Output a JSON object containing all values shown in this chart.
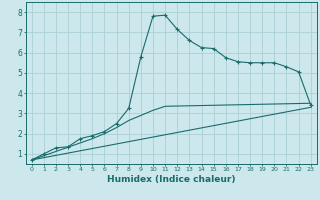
{
  "xlabel": "Humidex (Indice chaleur)",
  "background_color": "#cce8ec",
  "grid_color": "#aacfd5",
  "line_color": "#1a6b6b",
  "xlim": [
    -0.5,
    23.5
  ],
  "ylim": [
    0.5,
    8.5
  ],
  "xticks": [
    0,
    1,
    2,
    3,
    4,
    5,
    6,
    7,
    8,
    9,
    10,
    11,
    12,
    13,
    14,
    15,
    16,
    17,
    18,
    19,
    20,
    21,
    22,
    23
  ],
  "yticks": [
    1,
    2,
    3,
    4,
    5,
    6,
    7,
    8
  ],
  "line1_x": [
    0,
    1,
    2,
    3,
    4,
    5,
    6,
    7,
    8,
    9,
    10,
    11,
    12,
    13,
    14,
    15,
    16,
    17,
    18,
    19,
    20,
    21,
    22,
    23
  ],
  "line1_y": [
    0.7,
    1.0,
    1.3,
    1.35,
    1.75,
    1.9,
    2.1,
    2.5,
    3.25,
    5.8,
    7.8,
    7.85,
    7.15,
    6.6,
    6.25,
    6.2,
    5.75,
    5.55,
    5.5,
    5.5,
    5.5,
    5.3,
    5.05,
    3.4
  ],
  "line2_x": [
    0,
    5,
    6,
    7,
    8,
    9,
    10,
    11,
    23
  ],
  "line2_y": [
    0.7,
    1.75,
    2.0,
    2.3,
    2.65,
    2.9,
    3.15,
    3.35,
    3.5
  ],
  "line3_x": [
    0,
    23
  ],
  "line3_y": [
    0.7,
    3.3
  ],
  "figsize": [
    3.2,
    2.0
  ],
  "dpi": 100
}
